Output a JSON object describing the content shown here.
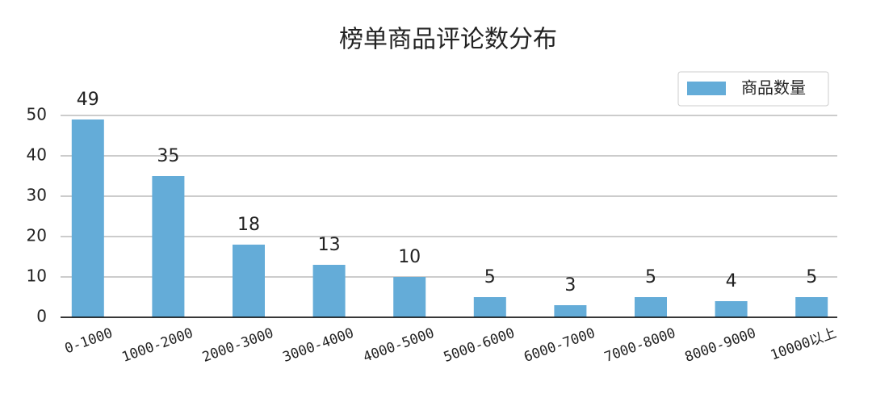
{
  "chart_data": {
    "type": "bar",
    "title": "榜单商品评论数分布",
    "categories": [
      "0-1000",
      "1000-2000",
      "2000-3000",
      "3000-4000",
      "4000-5000",
      "5000-6000",
      "6000-7000",
      "7000-8000",
      "8000-9000",
      "10000以上"
    ],
    "series": [
      {
        "name": "商品数量",
        "color": "#64acd8",
        "values": [
          49,
          35,
          18,
          13,
          10,
          5,
          3,
          5,
          4,
          5
        ]
      }
    ],
    "ylim": [
      0,
      50
    ],
    "yticks": [
      0,
      10,
      20,
      30,
      40,
      50
    ],
    "grid": true,
    "legend": "upper-right"
  }
}
